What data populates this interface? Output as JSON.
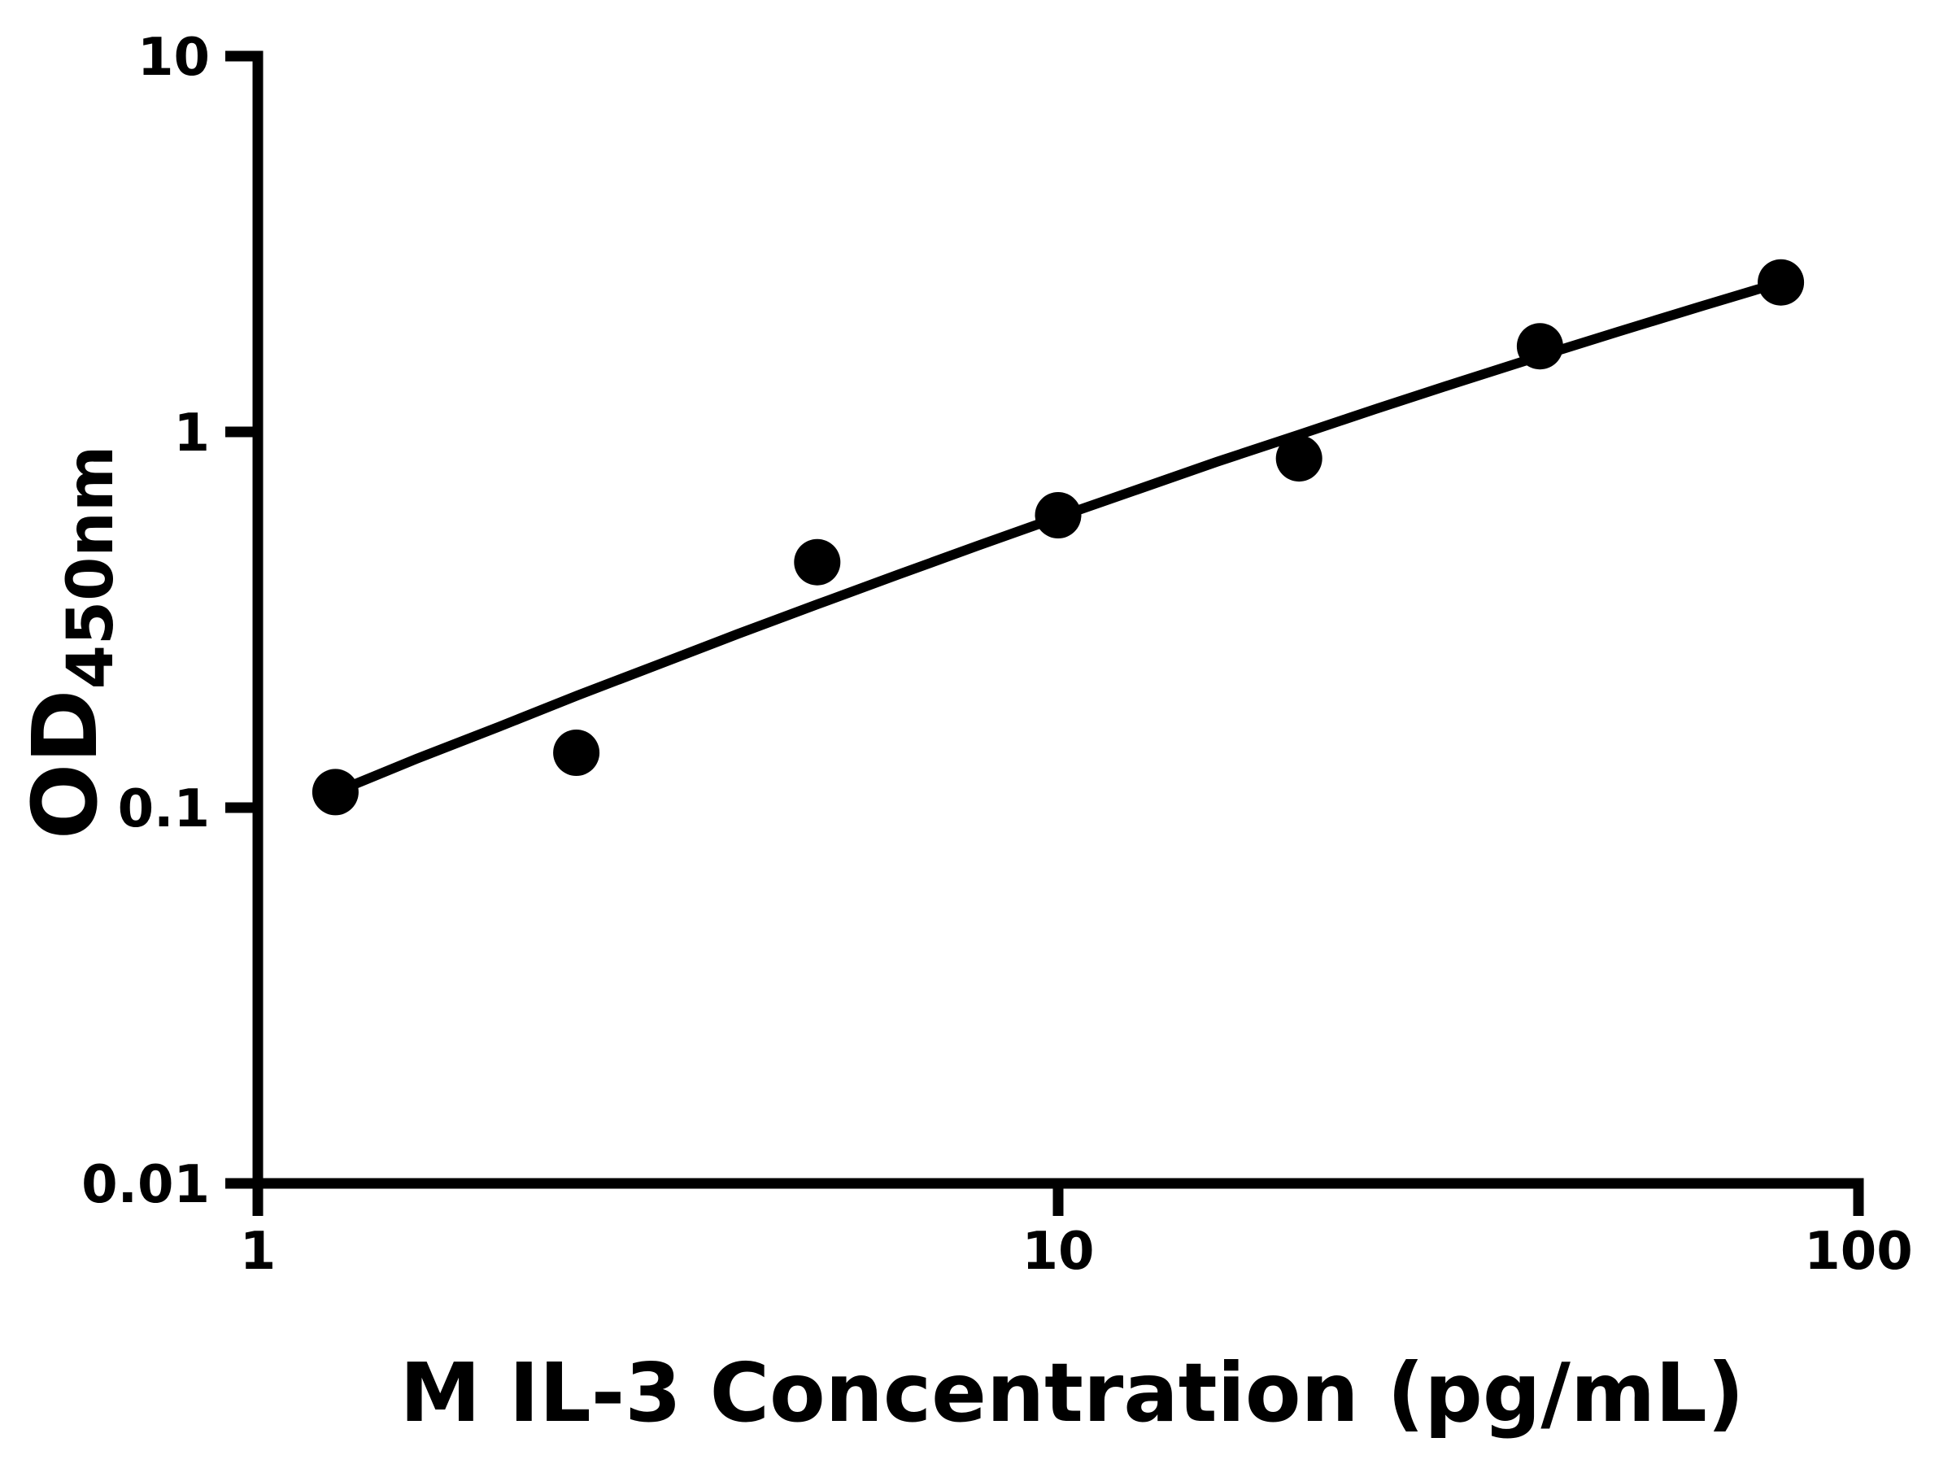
{
  "chart_data": {
    "type": "scatter",
    "title": "",
    "xlabel": "M IL-3 Concentration (pg/mL)",
    "ylabel_main": "OD",
    "ylabel_sub": "450nm",
    "x_scale": "log",
    "y_scale": "log",
    "xlim": [
      1,
      100
    ],
    "ylim": [
      0.01,
      10
    ],
    "grid": false,
    "legend": null,
    "x_ticks": [
      {
        "value": 1,
        "label": "1"
      },
      {
        "value": 10,
        "label": "10"
      },
      {
        "value": 100,
        "label": "100"
      }
    ],
    "y_ticks": [
      {
        "value": 10,
        "label": "10"
      },
      {
        "value": 1,
        "label": "1"
      },
      {
        "value": 0.1,
        "label": "0.1"
      },
      {
        "value": 0.01,
        "label": "0.01"
      }
    ],
    "points": [
      {
        "x": 1.25,
        "y": 0.11
      },
      {
        "x": 2.5,
        "y": 0.14
      },
      {
        "x": 5,
        "y": 0.45
      },
      {
        "x": 10,
        "y": 0.6
      },
      {
        "x": 20,
        "y": 0.85
      },
      {
        "x": 40,
        "y": 1.69
      },
      {
        "x": 80,
        "y": 2.5
      }
    ],
    "fit_curve": [
      [
        1.25,
        0.11
      ],
      [
        1.58,
        0.135
      ],
      [
        2.0,
        0.164
      ],
      [
        2.51,
        0.199
      ],
      [
        3.16,
        0.24
      ],
      [
        3.98,
        0.29
      ],
      [
        5.01,
        0.348
      ],
      [
        6.31,
        0.417
      ],
      [
        7.94,
        0.498
      ],
      [
        10.0,
        0.593
      ],
      [
        12.6,
        0.704
      ],
      [
        15.8,
        0.833
      ],
      [
        20.0,
        0.983
      ],
      [
        25.1,
        1.156
      ],
      [
        31.6,
        1.356
      ],
      [
        39.8,
        1.586
      ],
      [
        50.1,
        1.848
      ],
      [
        63.1,
        2.148
      ],
      [
        80.0,
        2.5
      ]
    ],
    "colors": {
      "points": "#000000",
      "line": "#000000",
      "axis": "#000000",
      "text": "#000000",
      "background": "#ffffff"
    },
    "marker_diameter_px": 57
  }
}
